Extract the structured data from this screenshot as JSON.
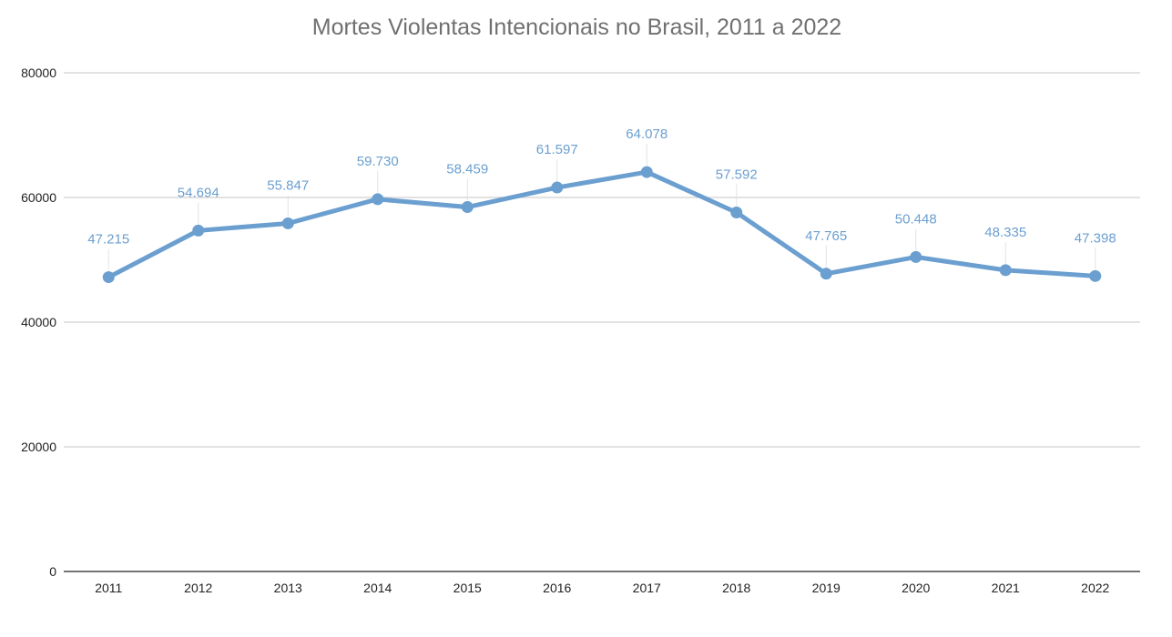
{
  "chart_data": {
    "type": "line",
    "title": "Mortes Violentas Intencionais no Brasil, 2011 a 2022",
    "xlabel": "",
    "ylabel": "",
    "categories": [
      "2011",
      "2012",
      "2013",
      "2014",
      "2015",
      "2016",
      "2017",
      "2018",
      "2019",
      "2020",
      "2021",
      "2022"
    ],
    "series": [
      {
        "values": [
          47215,
          54694,
          55847,
          59730,
          58459,
          61597,
          64078,
          57592,
          47765,
          50448,
          48335,
          47398
        ],
        "labels": [
          "47.215",
          "54.694",
          "55.847",
          "59.730",
          "58.459",
          "61.597",
          "64.078",
          "57.592",
          "47.765",
          "50.448",
          "48.335",
          "47.398"
        ],
        "color": "#6b9fd0"
      }
    ],
    "ylim": [
      0,
      80000
    ],
    "yticks": [
      0,
      20000,
      40000,
      60000,
      80000
    ],
    "ytick_labels": [
      "0",
      "20000",
      "40000",
      "60000",
      "80000"
    ],
    "grid": true,
    "legend": "none"
  }
}
